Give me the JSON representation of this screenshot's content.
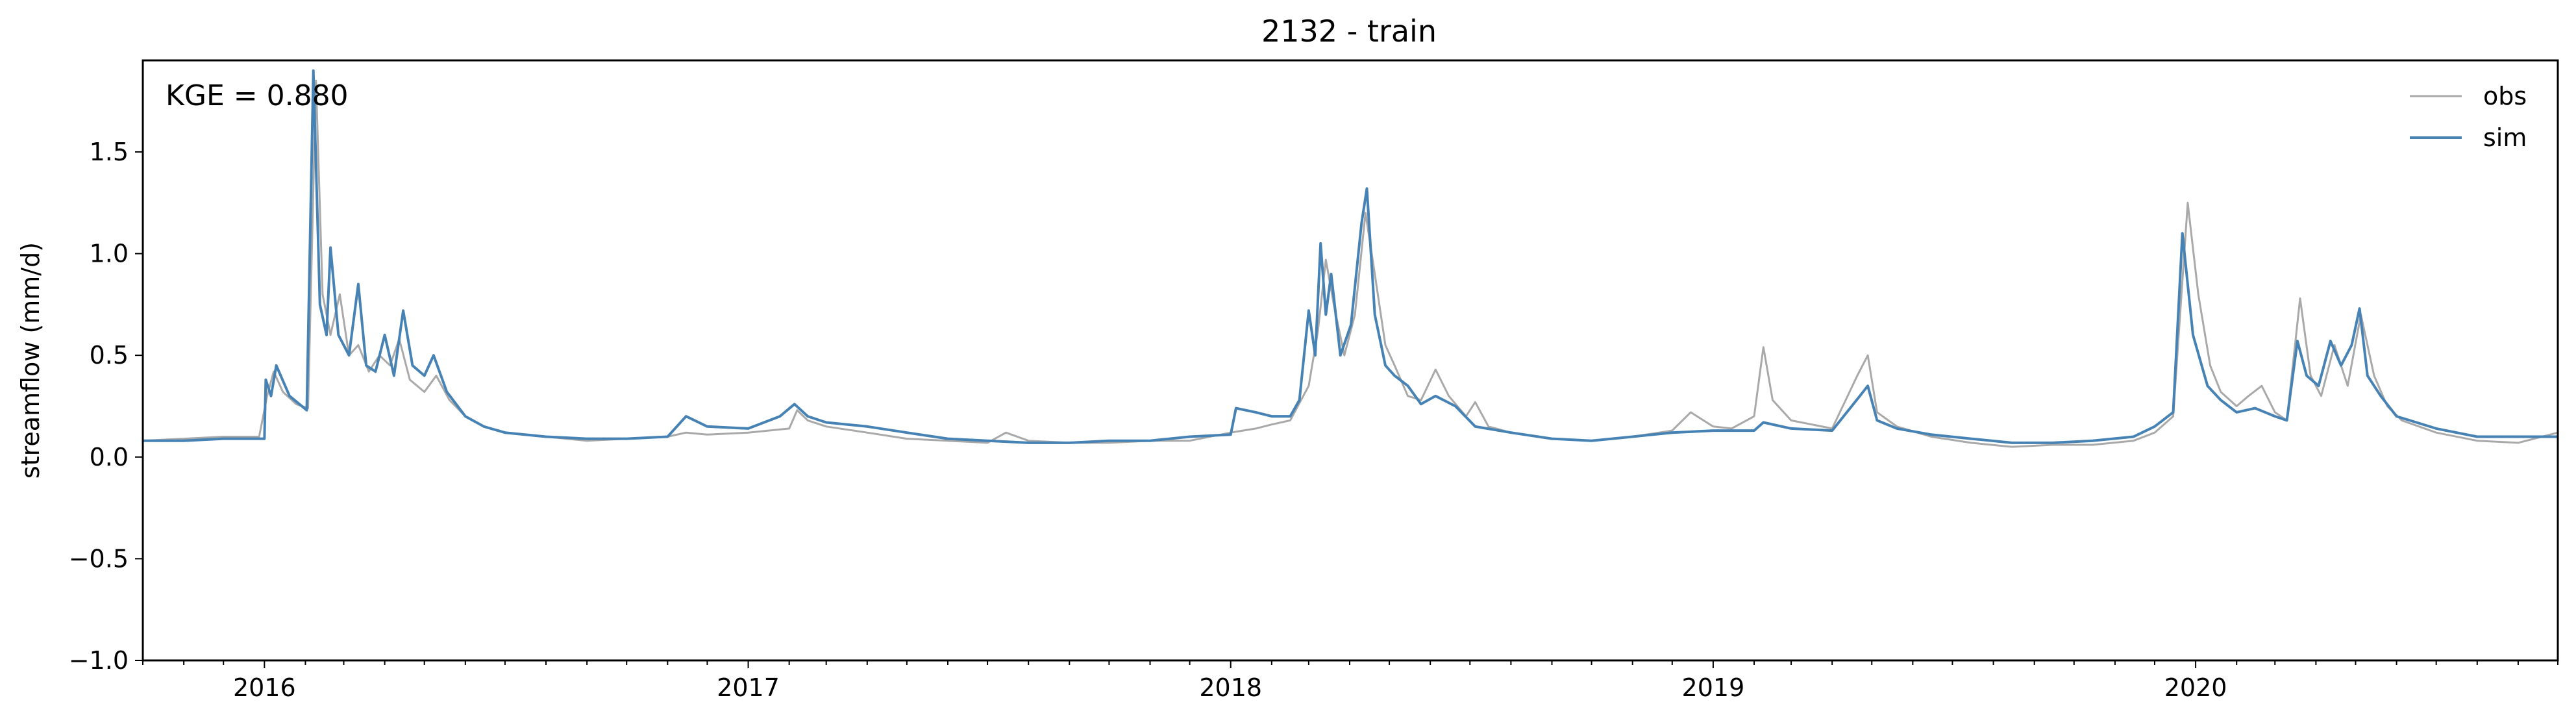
{
  "chart_data": {
    "type": "line",
    "title": "2132 - train",
    "ylabel": "streamflow (mm/d)",
    "xlabel": "",
    "annotation": "KGE = 0.880",
    "xlim": [
      "2015-10-01",
      "2020-10-01"
    ],
    "ylim": [
      -1.0,
      1.95
    ],
    "yticks": [
      -1.0,
      -0.5,
      0.0,
      0.5,
      1.0,
      1.5
    ],
    "ytick_labels": [
      "−1.0",
      "−0.5",
      "0.0",
      "0.5",
      "1.0",
      "1.5"
    ],
    "xticks": [
      "2016-01-01",
      "2017-01-01",
      "2018-01-01",
      "2019-01-01",
      "2020-01-01"
    ],
    "xtick_labels": [
      "2016",
      "2017",
      "2018",
      "2019",
      "2020"
    ],
    "grid": false,
    "legend_position": "top-right",
    "series": [
      {
        "name": "obs",
        "color": "#a9a9a9",
        "points": [
          [
            "2015-10-01",
            0.08
          ],
          [
            "2015-11-01",
            0.09
          ],
          [
            "2015-12-01",
            0.1
          ],
          [
            "2015-12-28",
            0.1
          ],
          [
            "2016-01-03",
            0.3
          ],
          [
            "2016-01-08",
            0.42
          ],
          [
            "2016-01-15",
            0.32
          ],
          [
            "2016-01-25",
            0.26
          ],
          [
            "2016-02-03",
            0.24
          ],
          [
            "2016-02-09",
            1.85
          ],
          [
            "2016-02-14",
            0.8
          ],
          [
            "2016-02-20",
            0.6
          ],
          [
            "2016-02-27",
            0.8
          ],
          [
            "2016-03-05",
            0.5
          ],
          [
            "2016-03-12",
            0.55
          ],
          [
            "2016-03-20",
            0.42
          ],
          [
            "2016-03-28",
            0.5
          ],
          [
            "2016-04-05",
            0.45
          ],
          [
            "2016-04-12",
            0.58
          ],
          [
            "2016-04-20",
            0.38
          ],
          [
            "2016-05-01",
            0.32
          ],
          [
            "2016-05-10",
            0.4
          ],
          [
            "2016-05-20",
            0.28
          ],
          [
            "2016-06-01",
            0.2
          ],
          [
            "2016-06-15",
            0.15
          ],
          [
            "2016-07-01",
            0.12
          ],
          [
            "2016-08-01",
            0.1
          ],
          [
            "2016-09-01",
            0.08
          ],
          [
            "2016-10-01",
            0.09
          ],
          [
            "2016-11-01",
            0.1
          ],
          [
            "2016-11-15",
            0.12
          ],
          [
            "2016-12-01",
            0.11
          ],
          [
            "2017-01-01",
            0.12
          ],
          [
            "2017-02-01",
            0.14
          ],
          [
            "2017-02-07",
            0.23
          ],
          [
            "2017-02-15",
            0.18
          ],
          [
            "2017-03-01",
            0.15
          ],
          [
            "2017-04-01",
            0.12
          ],
          [
            "2017-05-01",
            0.09
          ],
          [
            "2017-06-01",
            0.08
          ],
          [
            "2017-07-01",
            0.07
          ],
          [
            "2017-07-15",
            0.12
          ],
          [
            "2017-08-01",
            0.08
          ],
          [
            "2017-09-01",
            0.07
          ],
          [
            "2017-10-01",
            0.07
          ],
          [
            "2017-11-01",
            0.08
          ],
          [
            "2017-12-01",
            0.08
          ],
          [
            "2018-01-01",
            0.12
          ],
          [
            "2018-01-20",
            0.14
          ],
          [
            "2018-02-01",
            0.16
          ],
          [
            "2018-02-15",
            0.18
          ],
          [
            "2018-03-01",
            0.35
          ],
          [
            "2018-03-08",
            0.62
          ],
          [
            "2018-03-14",
            0.97
          ],
          [
            "2018-03-20",
            0.75
          ],
          [
            "2018-03-28",
            0.5
          ],
          [
            "2018-04-05",
            0.7
          ],
          [
            "2018-04-13",
            1.2
          ],
          [
            "2018-04-20",
            0.9
          ],
          [
            "2018-04-28",
            0.55
          ],
          [
            "2018-05-05",
            0.45
          ],
          [
            "2018-05-15",
            0.3
          ],
          [
            "2018-05-25",
            0.28
          ],
          [
            "2018-06-05",
            0.43
          ],
          [
            "2018-06-15",
            0.3
          ],
          [
            "2018-06-28",
            0.2
          ],
          [
            "2018-07-05",
            0.27
          ],
          [
            "2018-07-15",
            0.15
          ],
          [
            "2018-08-01",
            0.12
          ],
          [
            "2018-09-01",
            0.09
          ],
          [
            "2018-10-01",
            0.08
          ],
          [
            "2018-11-01",
            0.1
          ],
          [
            "2018-12-01",
            0.13
          ],
          [
            "2018-12-15",
            0.22
          ],
          [
            "2019-01-01",
            0.15
          ],
          [
            "2019-01-15",
            0.14
          ],
          [
            "2019-02-01",
            0.2
          ],
          [
            "2019-02-08",
            0.54
          ],
          [
            "2019-02-15",
            0.28
          ],
          [
            "2019-03-01",
            0.18
          ],
          [
            "2019-04-01",
            0.14
          ],
          [
            "2019-04-20",
            0.4
          ],
          [
            "2019-04-28",
            0.5
          ],
          [
            "2019-05-05",
            0.22
          ],
          [
            "2019-05-20",
            0.15
          ],
          [
            "2019-06-15",
            0.1
          ],
          [
            "2019-07-15",
            0.07
          ],
          [
            "2019-08-15",
            0.05
          ],
          [
            "2019-09-15",
            0.06
          ],
          [
            "2019-10-15",
            0.06
          ],
          [
            "2019-11-15",
            0.08
          ],
          [
            "2019-12-01",
            0.12
          ],
          [
            "2019-12-15",
            0.2
          ],
          [
            "2019-12-26",
            1.25
          ],
          [
            "2020-01-03",
            0.8
          ],
          [
            "2020-01-12",
            0.45
          ],
          [
            "2020-01-20",
            0.32
          ],
          [
            "2020-02-01",
            0.25
          ],
          [
            "2020-02-10",
            0.3
          ],
          [
            "2020-02-20",
            0.35
          ],
          [
            "2020-03-01",
            0.22
          ],
          [
            "2020-03-10",
            0.18
          ],
          [
            "2020-03-20",
            0.78
          ],
          [
            "2020-03-28",
            0.4
          ],
          [
            "2020-04-05",
            0.3
          ],
          [
            "2020-04-15",
            0.55
          ],
          [
            "2020-04-25",
            0.35
          ],
          [
            "2020-05-05",
            0.7
          ],
          [
            "2020-05-15",
            0.4
          ],
          [
            "2020-05-25",
            0.25
          ],
          [
            "2020-06-05",
            0.18
          ],
          [
            "2020-07-01",
            0.12
          ],
          [
            "2020-08-01",
            0.08
          ],
          [
            "2020-09-01",
            0.07
          ],
          [
            "2020-10-01",
            0.12
          ]
        ]
      },
      {
        "name": "sim",
        "color": "#4682b4",
        "points": [
          [
            "2015-10-01",
            0.08
          ],
          [
            "2015-11-01",
            0.08
          ],
          [
            "2015-12-01",
            0.09
          ],
          [
            "2016-01-01",
            0.09
          ],
          [
            "2016-01-02",
            0.38
          ],
          [
            "2016-01-06",
            0.3
          ],
          [
            "2016-01-10",
            0.45
          ],
          [
            "2016-01-20",
            0.3
          ],
          [
            "2016-02-02",
            0.23
          ],
          [
            "2016-02-07",
            1.9
          ],
          [
            "2016-02-12",
            0.75
          ],
          [
            "2016-02-17",
            0.6
          ],
          [
            "2016-02-20",
            1.03
          ],
          [
            "2016-02-26",
            0.6
          ],
          [
            "2016-03-05",
            0.5
          ],
          [
            "2016-03-12",
            0.85
          ],
          [
            "2016-03-18",
            0.45
          ],
          [
            "2016-03-25",
            0.42
          ],
          [
            "2016-04-01",
            0.6
          ],
          [
            "2016-04-08",
            0.4
          ],
          [
            "2016-04-15",
            0.72
          ],
          [
            "2016-04-22",
            0.45
          ],
          [
            "2016-05-01",
            0.4
          ],
          [
            "2016-05-08",
            0.5
          ],
          [
            "2016-05-18",
            0.32
          ],
          [
            "2016-06-01",
            0.2
          ],
          [
            "2016-06-15",
            0.15
          ],
          [
            "2016-07-01",
            0.12
          ],
          [
            "2016-08-01",
            0.1
          ],
          [
            "2016-09-01",
            0.09
          ],
          [
            "2016-10-01",
            0.09
          ],
          [
            "2016-11-01",
            0.1
          ],
          [
            "2016-11-15",
            0.2
          ],
          [
            "2016-12-01",
            0.15
          ],
          [
            "2017-01-01",
            0.14
          ],
          [
            "2017-01-25",
            0.2
          ],
          [
            "2017-02-05",
            0.26
          ],
          [
            "2017-02-15",
            0.2
          ],
          [
            "2017-03-01",
            0.17
          ],
          [
            "2017-04-01",
            0.15
          ],
          [
            "2017-05-01",
            0.12
          ],
          [
            "2017-06-01",
            0.09
          ],
          [
            "2017-07-01",
            0.08
          ],
          [
            "2017-08-01",
            0.07
          ],
          [
            "2017-09-01",
            0.07
          ],
          [
            "2017-10-01",
            0.08
          ],
          [
            "2017-11-01",
            0.08
          ],
          [
            "2017-12-01",
            0.1
          ],
          [
            "2018-01-01",
            0.11
          ],
          [
            "2018-01-05",
            0.24
          ],
          [
            "2018-01-20",
            0.22
          ],
          [
            "2018-02-01",
            0.2
          ],
          [
            "2018-02-15",
            0.2
          ],
          [
            "2018-02-22",
            0.28
          ],
          [
            "2018-03-01",
            0.72
          ],
          [
            "2018-03-06",
            0.5
          ],
          [
            "2018-03-10",
            1.05
          ],
          [
            "2018-03-14",
            0.7
          ],
          [
            "2018-03-18",
            0.9
          ],
          [
            "2018-03-25",
            0.5
          ],
          [
            "2018-04-02",
            0.65
          ],
          [
            "2018-04-10",
            1.15
          ],
          [
            "2018-04-14",
            1.32
          ],
          [
            "2018-04-20",
            0.7
          ],
          [
            "2018-04-28",
            0.45
          ],
          [
            "2018-05-05",
            0.4
          ],
          [
            "2018-05-15",
            0.35
          ],
          [
            "2018-05-25",
            0.26
          ],
          [
            "2018-06-05",
            0.3
          ],
          [
            "2018-06-20",
            0.25
          ],
          [
            "2018-07-05",
            0.15
          ],
          [
            "2018-08-01",
            0.12
          ],
          [
            "2018-09-01",
            0.09
          ],
          [
            "2018-10-01",
            0.08
          ],
          [
            "2018-11-01",
            0.1
          ],
          [
            "2018-12-01",
            0.12
          ],
          [
            "2019-01-01",
            0.13
          ],
          [
            "2019-02-01",
            0.13
          ],
          [
            "2019-02-08",
            0.17
          ],
          [
            "2019-03-01",
            0.14
          ],
          [
            "2019-04-01",
            0.13
          ],
          [
            "2019-04-22",
            0.3
          ],
          [
            "2019-04-28",
            0.35
          ],
          [
            "2019-05-05",
            0.18
          ],
          [
            "2019-05-20",
            0.14
          ],
          [
            "2019-06-15",
            0.11
          ],
          [
            "2019-07-15",
            0.09
          ],
          [
            "2019-08-15",
            0.07
          ],
          [
            "2019-09-15",
            0.07
          ],
          [
            "2019-10-15",
            0.08
          ],
          [
            "2019-11-15",
            0.1
          ],
          [
            "2019-12-01",
            0.15
          ],
          [
            "2019-12-15",
            0.22
          ],
          [
            "2019-12-22",
            1.1
          ],
          [
            "2019-12-30",
            0.6
          ],
          [
            "2020-01-10",
            0.35
          ],
          [
            "2020-01-20",
            0.28
          ],
          [
            "2020-02-01",
            0.22
          ],
          [
            "2020-02-15",
            0.24
          ],
          [
            "2020-03-01",
            0.2
          ],
          [
            "2020-03-10",
            0.18
          ],
          [
            "2020-03-18",
            0.57
          ],
          [
            "2020-03-25",
            0.4
          ],
          [
            "2020-04-03",
            0.35
          ],
          [
            "2020-04-12",
            0.57
          ],
          [
            "2020-04-20",
            0.45
          ],
          [
            "2020-04-28",
            0.55
          ],
          [
            "2020-05-04",
            0.73
          ],
          [
            "2020-05-10",
            0.4
          ],
          [
            "2020-05-20",
            0.3
          ],
          [
            "2020-06-01",
            0.2
          ],
          [
            "2020-07-01",
            0.14
          ],
          [
            "2020-08-01",
            0.1
          ],
          [
            "2020-09-01",
            0.1
          ],
          [
            "2020-10-01",
            0.1
          ]
        ]
      }
    ]
  }
}
